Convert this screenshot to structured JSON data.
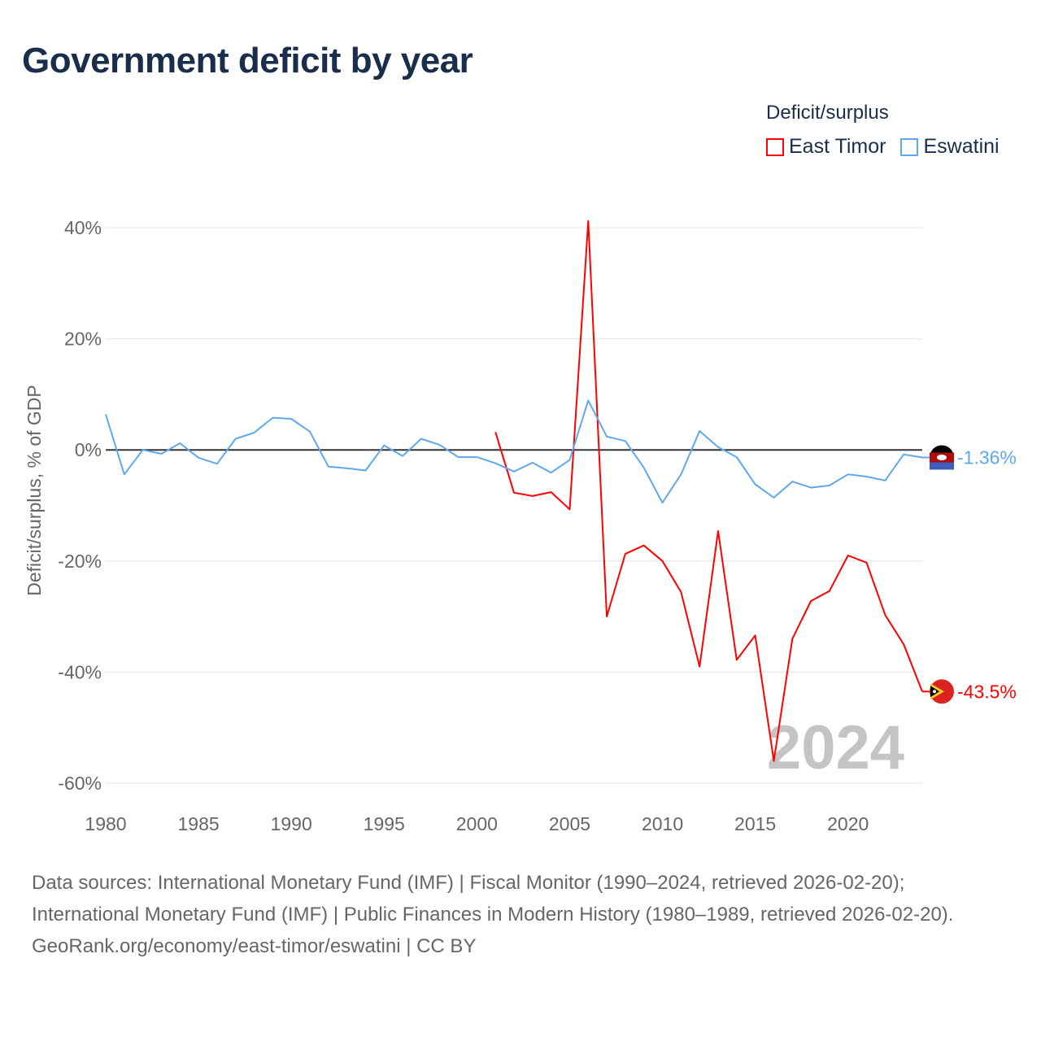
{
  "title": "Government deficit by year",
  "legend": {
    "title": "Deficit/surplus"
  },
  "chart_data": {
    "type": "line",
    "title": "Government deficit by year",
    "ylabel": "Deficit/surplus, % of GDP",
    "xlabel": "",
    "xlim": [
      1980,
      2024
    ],
    "ylim": [
      -60,
      40
    ],
    "xticks": [
      1980,
      1985,
      1990,
      1995,
      2000,
      2005,
      2010,
      2015,
      2020
    ],
    "xtick_labels": [
      "1980",
      "1985",
      "1990",
      "1995",
      "2000",
      "2005",
      "2010",
      "2015",
      "2020"
    ],
    "yticks": [
      40,
      20,
      0,
      -20,
      -40,
      -60
    ],
    "ytick_labels": [
      "40%",
      "20%",
      "0%",
      "-20%",
      "-40%",
      "-60%"
    ],
    "grid": true,
    "legend_position": "top-right",
    "year_watermark": "2024",
    "series": [
      {
        "name": "East Timor",
        "color": "#ff0000",
        "end_label": "-43.5%",
        "x": [
          2001,
          2002,
          2003,
          2004,
          2005,
          2006,
          2007,
          2008,
          2009,
          2010,
          2011,
          2012,
          2013,
          2014,
          2015,
          2016,
          2017,
          2018,
          2019,
          2020,
          2021,
          2022,
          2023,
          2024
        ],
        "values": [
          3.2,
          -7.7,
          -8.3,
          -7.6,
          -10.7,
          41.2,
          -30.0,
          -18.7,
          -17.2,
          -20.0,
          -25.6,
          -39.0,
          -14.6,
          -37.8,
          -33.4,
          -56.0,
          -34.0,
          -27.2,
          -25.4,
          -19.0,
          -20.3,
          -29.7,
          -35.0,
          -43.5
        ]
      },
      {
        "name": "Eswatini",
        "color": "#5ea9ec",
        "end_label": "-1.36%",
        "x": [
          1980,
          1981,
          1982,
          1983,
          1984,
          1985,
          1986,
          1987,
          1988,
          1989,
          1990,
          1991,
          1992,
          1993,
          1994,
          1995,
          1996,
          1997,
          1998,
          1999,
          2000,
          2001,
          2002,
          2003,
          2004,
          2005,
          2006,
          2007,
          2008,
          2009,
          2010,
          2011,
          2012,
          2013,
          2014,
          2015,
          2016,
          2017,
          2018,
          2019,
          2020,
          2021,
          2022,
          2023,
          2024
        ],
        "values": [
          6.4,
          -4.4,
          0.0,
          -0.7,
          1.2,
          -1.4,
          -2.5,
          2.0,
          3.1,
          5.8,
          5.6,
          3.3,
          -3.0,
          -3.3,
          -3.7,
          0.8,
          -1.1,
          2.0,
          0.9,
          -1.3,
          -1.3,
          -2.4,
          -3.9,
          -2.3,
          -4.1,
          -1.8,
          8.9,
          2.4,
          1.6,
          -3.2,
          -9.5,
          -4.4,
          3.4,
          0.5,
          -1.3,
          -6.2,
          -8.6,
          -5.7,
          -6.8,
          -6.4,
          -4.4,
          -4.8,
          -5.5,
          -0.8,
          -1.36
        ]
      }
    ]
  },
  "footer": {
    "sources": "Data sources: International Monetary Fund (IMF) | Fiscal Monitor (1990–2024, retrieved 2026-02-20); International Monetary Fund (IMF) | Public Finances in Modern History (1980–1989, retrieved 2026-02-20).",
    "link": "GeoRank.org/economy/east-timor/eswatini | CC BY"
  }
}
